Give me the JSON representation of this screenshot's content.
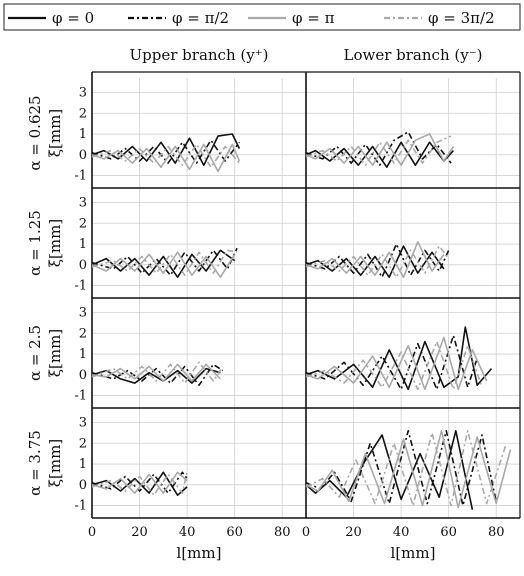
{
  "legend": [
    {
      "label": "φ = 0",
      "style": "solid",
      "color": "#111111"
    },
    {
      "label": "φ = π/2",
      "style": "dashdot",
      "color": "#111111"
    },
    {
      "label": "φ = π",
      "style": "solid",
      "color": "#a8a8a8"
    },
    {
      "label": "φ = 3π/2",
      "style": "dashdot",
      "color": "#a8a8a8"
    }
  ],
  "columns": [
    "Upper branch (y⁺)",
    "Lower branch (y⁻)"
  ],
  "rows": [
    {
      "alpha_label": "α = 0.625",
      "ylabel": "ξ[mm]"
    },
    {
      "alpha_label": "α = 1.25",
      "ylabel": "ξ[mm]"
    },
    {
      "alpha_label": "α = 2.5",
      "ylabel": "ξ[mm]"
    },
    {
      "alpha_label": "α = 3.75",
      "ylabel": "ξ[mm]"
    }
  ],
  "xlabel": "l[mm]",
  "chart_data": {
    "type": "line",
    "xlim": [
      0,
      90
    ],
    "ylim": [
      -1.6,
      3.7
    ],
    "xticks": [
      0,
      20,
      40,
      60,
      80
    ],
    "yticks": [
      -1,
      0,
      1,
      2,
      3
    ],
    "grid": true,
    "legend_position": "top",
    "panels": [
      {
        "row": 0,
        "col": 0,
        "series": [
          {
            "name": "φ = 0",
            "x": [
              0,
              5,
              11,
              17,
              23,
              29,
              35,
              41,
              47,
              53,
              59,
              62
            ],
            "y": [
              0,
              0.2,
              -0.2,
              0.4,
              -0.3,
              0.6,
              -0.4,
              0.8,
              -0.5,
              0.9,
              1.0,
              0.3
            ]
          },
          {
            "name": "φ = π/2",
            "x": [
              0,
              8,
              14,
              20,
              26,
              32,
              38,
              44,
              50,
              56,
              62
            ],
            "y": [
              0.1,
              -0.2,
              0.3,
              -0.3,
              0.4,
              -0.4,
              0.6,
              -0.4,
              0.7,
              -0.3,
              0.6
            ]
          },
          {
            "name": "φ = π",
            "x": [
              0,
              5,
              11,
              17,
              23,
              29,
              35,
              41,
              47,
              53,
              59,
              62
            ],
            "y": [
              0,
              -0.2,
              0.2,
              -0.4,
              0.3,
              -0.6,
              0.4,
              -0.7,
              0.5,
              -0.8,
              0.5,
              -0.3
            ]
          },
          {
            "name": "φ = 3π/2",
            "x": [
              0,
              8,
              14,
              20,
              26,
              32,
              38,
              44,
              50,
              56,
              62
            ],
            "y": [
              -0.1,
              0.2,
              -0.3,
              0.3,
              -0.4,
              0.4,
              -0.5,
              0.5,
              -0.6,
              0.4,
              -0.4
            ]
          }
        ]
      },
      {
        "row": 0,
        "col": 1,
        "series": [
          {
            "name": "φ = 0",
            "x": [
              0,
              4,
              10,
              16,
              22,
              28,
              34,
              40,
              46,
              52,
              58,
              62
            ],
            "y": [
              0,
              0.2,
              -0.3,
              0.3,
              -0.5,
              0.4,
              -0.6,
              0.6,
              -0.5,
              0.6,
              -0.3,
              0.2
            ]
          },
          {
            "name": "φ = π/2",
            "x": [
              0,
              7,
              13,
              19,
              25,
              31,
              37,
              43,
              49,
              55,
              61
            ],
            "y": [
              0.1,
              -0.2,
              0.4,
              -0.4,
              0.5,
              -0.5,
              0.7,
              1.1,
              -0.2,
              0.5,
              -0.4
            ]
          },
          {
            "name": "φ = π",
            "x": [
              0,
              4,
              10,
              16,
              22,
              28,
              34,
              40,
              46,
              52,
              58,
              62
            ],
            "y": [
              0,
              -0.2,
              0.3,
              -0.4,
              0.4,
              -0.5,
              0.6,
              -0.5,
              0.7,
              1.0,
              -0.3,
              0.4
            ]
          },
          {
            "name": "φ = 3π/2",
            "x": [
              0,
              7,
              13,
              19,
              25,
              31,
              37,
              43,
              49,
              55,
              61
            ],
            "y": [
              -0.1,
              0.2,
              -0.3,
              0.4,
              -0.5,
              0.6,
              -0.4,
              0.7,
              -0.4,
              0.6,
              0.9
            ]
          }
        ]
      },
      {
        "row": 1,
        "col": 0,
        "series": [
          {
            "name": "φ = 0",
            "x": [
              0,
              6,
              12,
              18,
              24,
              30,
              36,
              42,
              48,
              54,
              60
            ],
            "y": [
              0,
              0.3,
              -0.3,
              0.3,
              -0.5,
              0.4,
              -0.6,
              0.5,
              -0.3,
              0.7,
              0.2
            ]
          },
          {
            "name": "φ = π/2",
            "x": [
              0,
              9,
              15,
              21,
              27,
              33,
              39,
              45,
              51,
              57,
              61
            ],
            "y": [
              0.1,
              -0.2,
              0.4,
              -0.4,
              0.3,
              -0.5,
              0.6,
              -0.3,
              0.7,
              -0.2,
              0.8
            ]
          },
          {
            "name": "φ = π",
            "x": [
              0,
              6,
              12,
              18,
              24,
              30,
              36,
              42,
              48,
              54,
              60
            ],
            "y": [
              0,
              -0.3,
              0.3,
              -0.3,
              0.5,
              -0.4,
              0.6,
              -0.5,
              0.4,
              -0.6,
              0.5
            ]
          },
          {
            "name": "φ = 3π/2",
            "x": [
              0,
              9,
              15,
              21,
              27,
              33,
              39,
              45,
              51,
              57,
              61
            ],
            "y": [
              -0.1,
              0.2,
              -0.3,
              0.4,
              -0.4,
              0.5,
              -0.5,
              0.6,
              -0.4,
              0.7,
              0.6
            ]
          }
        ]
      },
      {
        "row": 1,
        "col": 1,
        "series": [
          {
            "name": "φ = 0",
            "x": [
              0,
              5,
              11,
              17,
              23,
              29,
              35,
              41,
              47,
              53,
              58
            ],
            "y": [
              0,
              0.2,
              -0.3,
              0.3,
              -0.5,
              0.4,
              -0.6,
              0.9,
              -0.4,
              0.6,
              -0.2
            ]
          },
          {
            "name": "φ = π/2",
            "x": [
              0,
              8,
              14,
              20,
              26,
              32,
              38,
              44,
              50,
              56,
              60
            ],
            "y": [
              0.1,
              -0.2,
              0.4,
              -0.4,
              0.5,
              -0.6,
              1.0,
              -0.5,
              0.7,
              -0.3,
              0.7
            ]
          },
          {
            "name": "φ = π",
            "x": [
              0,
              5,
              11,
              17,
              23,
              29,
              35,
              41,
              47,
              53,
              58
            ],
            "y": [
              0,
              -0.2,
              0.3,
              -0.4,
              0.4,
              -0.5,
              0.6,
              -0.6,
              1.1,
              -0.3,
              0.5
            ]
          },
          {
            "name": "φ = 3π/2",
            "x": [
              0,
              8,
              14,
              20,
              26,
              32,
              38,
              44,
              50,
              56,
              60
            ],
            "y": [
              -0.1,
              0.2,
              -0.3,
              0.4,
              -0.5,
              0.5,
              -0.6,
              0.7,
              -0.4,
              0.9,
              0.3
            ]
          }
        ]
      },
      {
        "row": 2,
        "col": 0,
        "series": [
          {
            "name": "φ = 0",
            "x": [
              0,
              6,
              12,
              18,
              24,
              30,
              36,
              42,
              48,
              54
            ],
            "y": [
              0,
              0.2,
              -0.2,
              -0.4,
              0.1,
              -0.3,
              0.2,
              -0.4,
              0.3,
              0.1
            ]
          },
          {
            "name": "φ = π/2",
            "x": [
              0,
              9,
              15,
              21,
              27,
              33,
              39,
              45,
              51,
              55
            ],
            "y": [
              0.1,
              -0.2,
              0.2,
              -0.3,
              0.3,
              -0.4,
              0.4,
              -0.5,
              0.5,
              0.2
            ]
          },
          {
            "name": "φ = π",
            "x": [
              0,
              6,
              12,
              18,
              24,
              30,
              36,
              42,
              48,
              54
            ],
            "y": [
              0,
              -0.1,
              0.3,
              -0.2,
              0.4,
              -0.3,
              0.5,
              -0.3,
              0.5,
              -0.2
            ]
          },
          {
            "name": "φ = 3π/2",
            "x": [
              0,
              9,
              15,
              21,
              27,
              33,
              39,
              45,
              51,
              55
            ],
            "y": [
              -0.1,
              0.3,
              -0.2,
              0.4,
              -0.3,
              0.5,
              -0.4,
              0.6,
              -0.3,
              0.4
            ]
          }
        ]
      },
      {
        "row": 2,
        "col": 1,
        "series": [
          {
            "name": "φ = 0",
            "x": [
              0,
              5,
              12,
              20,
              28,
              35,
              43,
              50,
              58,
              64,
              67,
              72,
              78
            ],
            "y": [
              0,
              0.2,
              -0.2,
              0.5,
              -0.6,
              1.2,
              -0.7,
              1.6,
              -0.6,
              -0.1,
              2.3,
              -0.5,
              0.3
            ]
          },
          {
            "name": "φ = π/2",
            "x": [
              0,
              8,
              16,
              24,
              32,
              40,
              47,
              55,
              62,
              68,
              72
            ],
            "y": [
              0.1,
              -0.2,
              0.6,
              -0.5,
              0.9,
              -0.7,
              1.5,
              -0.7,
              1.9,
              -0.6,
              0.8
            ]
          },
          {
            "name": "φ = π",
            "x": [
              0,
              5,
              12,
              20,
              28,
              35,
              43,
              50,
              58,
              64,
              70,
              76
            ],
            "y": [
              0,
              -0.2,
              0.4,
              -0.4,
              0.9,
              -0.6,
              1.4,
              -0.7,
              1.8,
              -0.7,
              1.2,
              -0.3
            ]
          },
          {
            "name": "φ = 3π/2",
            "x": [
              0,
              8,
              16,
              24,
              32,
              40,
              47,
              55,
              62,
              68,
              74
            ],
            "y": [
              -0.1,
              0.2,
              -0.4,
              0.7,
              -0.6,
              1.1,
              -0.7,
              1.6,
              -0.7,
              1.4,
              -0.6
            ]
          }
        ]
      },
      {
        "row": 3,
        "col": 0,
        "series": [
          {
            "name": "φ = 0",
            "x": [
              0,
              6,
              12,
              18,
              24,
              30,
              36,
              40
            ],
            "y": [
              0,
              0.2,
              -0.3,
              0.3,
              -0.4,
              0.6,
              -0.5,
              -0.1
            ]
          },
          {
            "name": "φ = π/2",
            "x": [
              0,
              8,
              14,
              20,
              26,
              32,
              38,
              40
            ],
            "y": [
              0.1,
              -0.2,
              0.4,
              -0.3,
              0.5,
              -0.4,
              0.6,
              0.3
            ]
          },
          {
            "name": "φ = π",
            "x": [
              0,
              6,
              12,
              18,
              24,
              30,
              36,
              40
            ],
            "y": [
              0,
              -0.2,
              0.3,
              -0.4,
              0.5,
              -0.4,
              0.6,
              0.2
            ]
          },
          {
            "name": "φ = 3π/2",
            "x": [
              0,
              8,
              14,
              20,
              26,
              32,
              38,
              40
            ],
            "y": [
              -0.1,
              0.2,
              -0.3,
              0.4,
              -0.5,
              0.5,
              -0.4,
              0.6
            ]
          }
        ]
      },
      {
        "row": 3,
        "col": 1,
        "series": [
          {
            "name": "φ = 0",
            "x": [
              0,
              4,
              10,
              17,
              24,
              32,
              40,
              48,
              56,
              63,
              70
            ],
            "y": [
              0,
              -0.4,
              0.2,
              -0.6,
              1.0,
              2.4,
              -0.7,
              1.5,
              -0.6,
              2.6,
              -1.2
            ]
          },
          {
            "name": "φ = π/2",
            "x": [
              0,
              6,
              12,
              19,
              27,
              35,
              43,
              51,
              59,
              66,
              74,
              80
            ],
            "y": [
              0.1,
              -0.2,
              0.6,
              -0.8,
              2.0,
              -0.9,
              2.6,
              -0.9,
              2.6,
              -1.0,
              2.4,
              -0.8
            ]
          },
          {
            "name": "φ = π",
            "x": [
              0,
              5,
              11,
              18,
              25,
              33,
              41,
              49,
              57,
              64,
              72,
              80,
              86
            ],
            "y": [
              0,
              -0.3,
              0.7,
              -0.8,
              1.5,
              -0.9,
              2.2,
              -1.0,
              2.6,
              -1.1,
              2.3,
              -0.9,
              1.7
            ]
          },
          {
            "name": "φ = 3π/2",
            "x": [
              0,
              7,
              14,
              21,
              29,
              37,
              45,
              53,
              61,
              68,
              76,
              84
            ],
            "y": [
              -0.1,
              0.3,
              -0.6,
              1.2,
              -0.9,
              2.0,
              -1.0,
              2.5,
              -1.0,
              2.6,
              -0.9,
              1.9
            ]
          }
        ]
      }
    ]
  }
}
